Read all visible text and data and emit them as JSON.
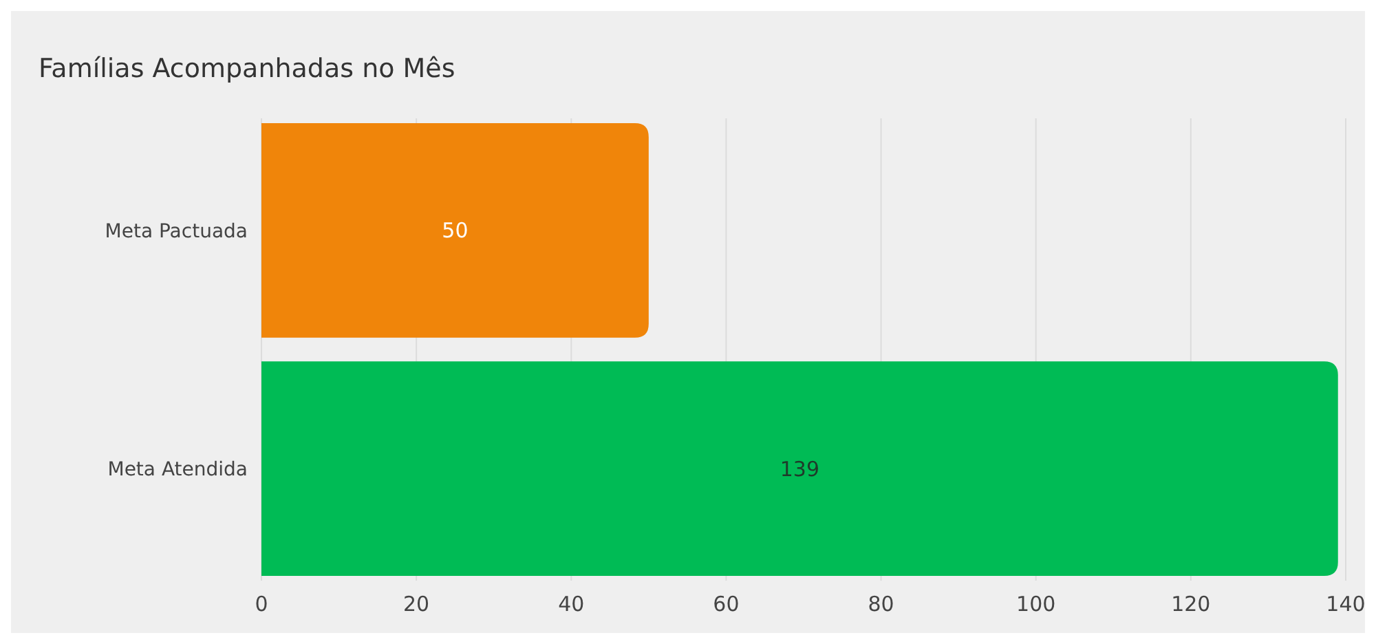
{
  "chart_data": {
    "type": "bar",
    "orientation": "horizontal",
    "title": "Famílias Acompanhadas no Mês",
    "categories": [
      "Meta Pactuada",
      "Meta Atendida"
    ],
    "values": [
      50,
      139
    ],
    "colors": [
      "#f0850a",
      "#00bb55"
    ],
    "xlim": [
      0,
      140
    ],
    "xticks": [
      0,
      20,
      40,
      60,
      80,
      100,
      120,
      140
    ],
    "grid": "x",
    "data_labels": true
  }
}
